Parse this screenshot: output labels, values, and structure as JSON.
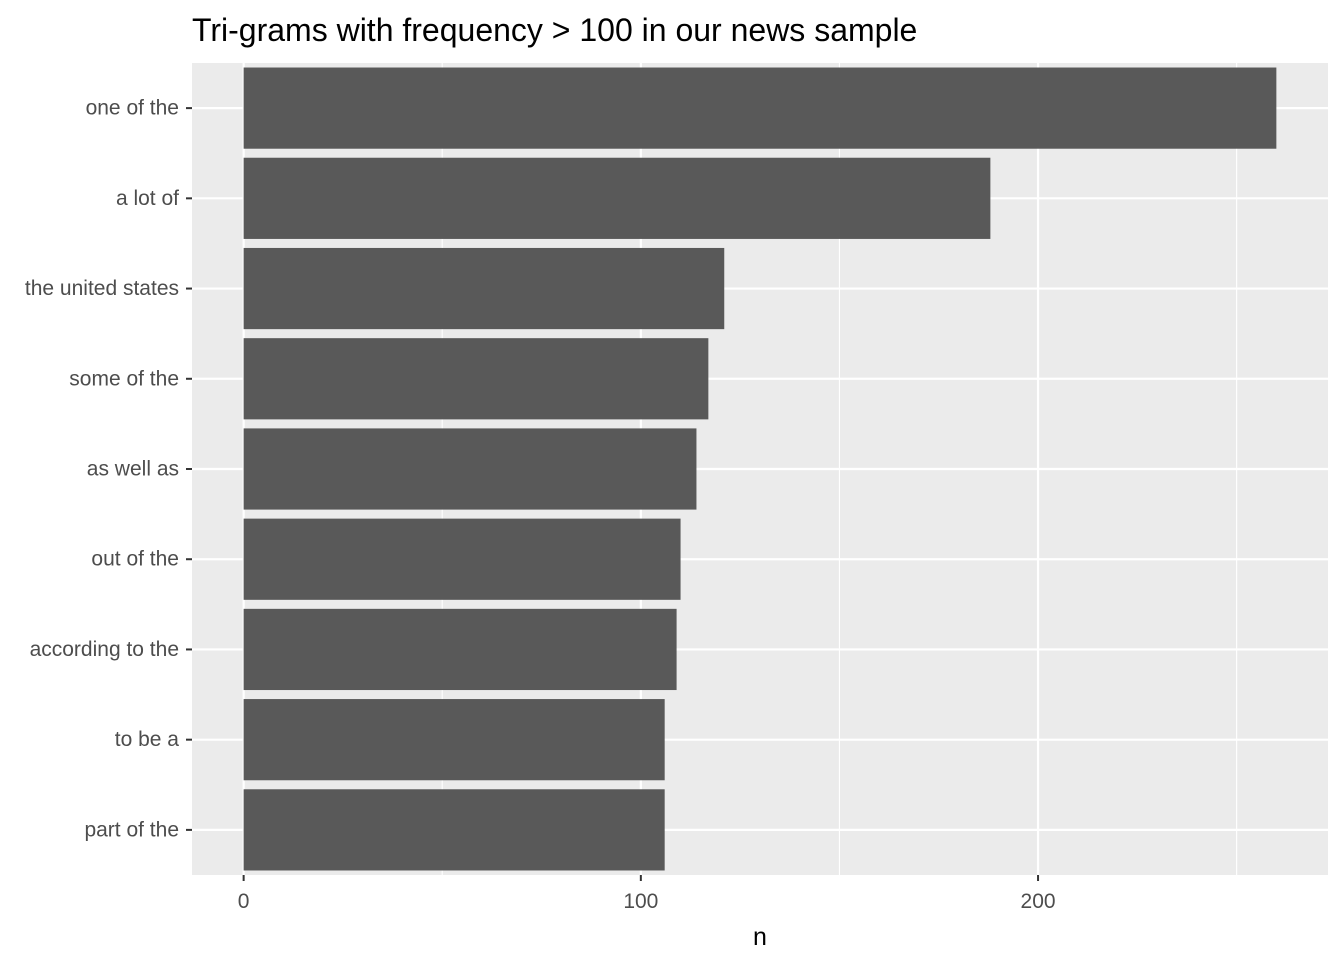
{
  "chart_data": {
    "type": "bar",
    "orientation": "horizontal",
    "title": "Tri-grams with frequency > 100 in our news sample",
    "xlabel": "n",
    "ylabel": "",
    "categories": [
      "one of the",
      "a lot of",
      "the united states",
      "some of the",
      "as well as",
      "out of the",
      "according to the",
      "to be a",
      "part of the"
    ],
    "values": [
      260,
      188,
      121,
      117,
      114,
      110,
      109,
      106,
      106
    ],
    "xlim": [
      -13,
      273
    ],
    "x_ticks": [
      0,
      100,
      200
    ],
    "grid": true,
    "bar_color": "#595959",
    "panel_background": "#ebebeb",
    "grid_color": "#ffffff"
  }
}
